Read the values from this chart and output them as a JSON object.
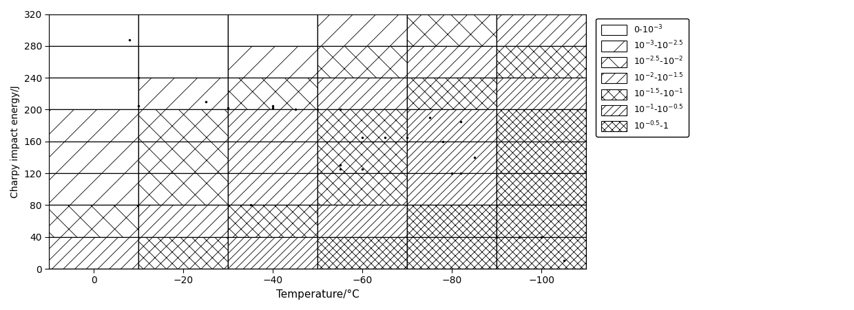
{
  "xlim": [
    10,
    -110
  ],
  "ylim": [
    0,
    320
  ],
  "xticks": [
    0,
    -20,
    -40,
    -60,
    -80,
    -100
  ],
  "yticks": [
    0,
    40,
    80,
    120,
    160,
    200,
    240,
    280,
    320
  ],
  "xlabel": "Temperature/°C",
  "ylabel": "Charpy impact energy/J",
  "legend_labels": [
    "0-10$^{-3}$",
    "10$^{-3}$-10$^{-2.5}$",
    "10$^{-2.5}$-10$^{-2}$",
    "10$^{-2}$-10$^{-1.5}$",
    "10$^{-1.5}$-10$^{-1}$",
    "10$^{-1}$-10$^{-0.5}$",
    "10$^{-0.5}$-1"
  ],
  "data_points": [
    [
      -8,
      288
    ],
    [
      -10,
      240
    ],
    [
      -10,
      205
    ],
    [
      -25,
      210
    ],
    [
      -30,
      202
    ],
    [
      -35,
      80
    ],
    [
      -40,
      205
    ],
    [
      -40,
      202
    ],
    [
      -45,
      200
    ],
    [
      -50,
      200
    ],
    [
      -55,
      200
    ],
    [
      -55,
      130
    ],
    [
      -55,
      125
    ],
    [
      -60,
      165
    ],
    [
      -60,
      125
    ],
    [
      -65,
      165
    ],
    [
      -70,
      165
    ],
    [
      -75,
      190
    ],
    [
      -78,
      160
    ],
    [
      -80,
      120
    ],
    [
      -82,
      185
    ],
    [
      -82,
      120
    ],
    [
      -85,
      140
    ],
    [
      -90,
      40
    ],
    [
      -95,
      40
    ],
    [
      -100,
      40
    ],
    [
      -105,
      10
    ]
  ],
  "zone_boundaries_x": [
    10,
    -10,
    -30,
    -50,
    -70,
    -90,
    -110
  ],
  "zone_boundaries_y": [
    0,
    40,
    80,
    120,
    160,
    200,
    240,
    280,
    320
  ],
  "figsize": [
    12.4,
    4.51
  ],
  "dpi": 100,
  "zone_matrix": [
    [
      3,
      4,
      5,
      6,
      6,
      6
    ],
    [
      2,
      3,
      4,
      5,
      6,
      6
    ],
    [
      1,
      2,
      3,
      4,
      5,
      6
    ],
    [
      1,
      2,
      3,
      4,
      5,
      6
    ],
    [
      1,
      2,
      3,
      4,
      5,
      6
    ],
    [
      0,
      1,
      2,
      3,
      4,
      5
    ],
    [
      0,
      0,
      1,
      2,
      3,
      4
    ],
    [
      0,
      0,
      0,
      1,
      2,
      3
    ]
  ],
  "hatch_styles": [
    "",
    "/",
    "//",
    "///",
    "x",
    "xx",
    "xxx"
  ]
}
